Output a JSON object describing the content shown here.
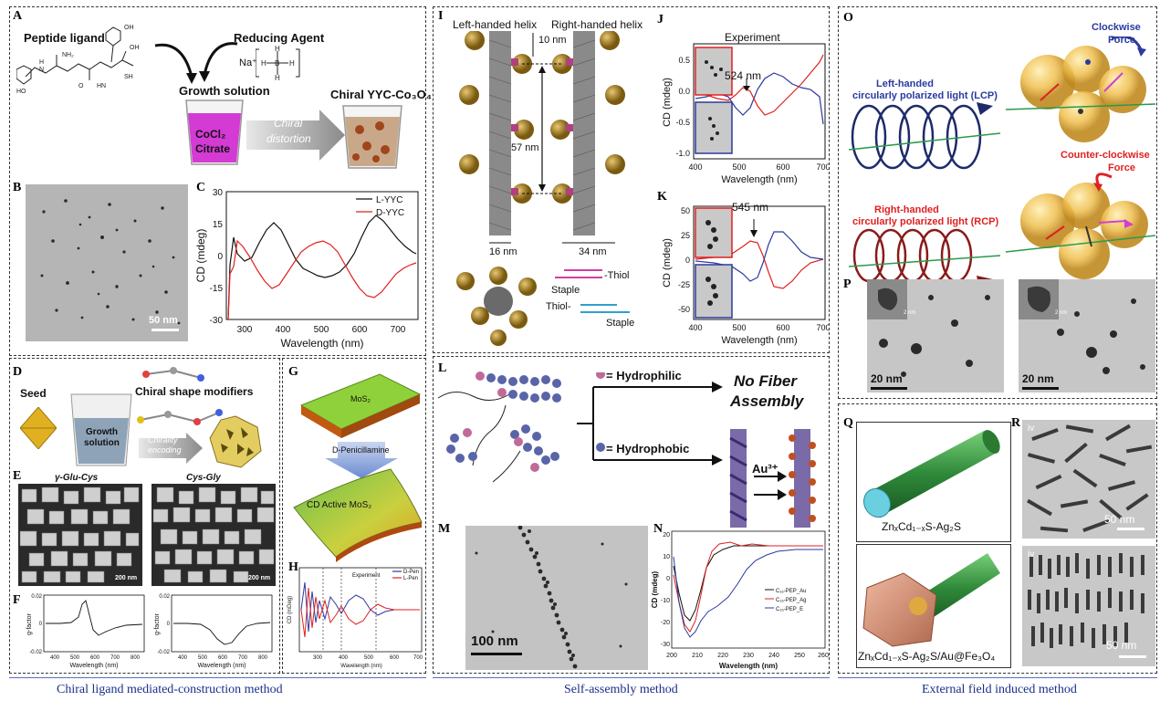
{
  "labels": {
    "A": "A",
    "B": "B",
    "C": "C",
    "D": "D",
    "E": "E",
    "F": "F",
    "G": "G",
    "H": "H",
    "I": "I",
    "J": "J",
    "K": "K",
    "L": "L",
    "M": "M",
    "N": "N",
    "O": "O",
    "P": "P",
    "Q": "Q",
    "R": "R"
  },
  "panelA": {
    "peptide": "Peptide ligand",
    "reducing": "Reducing Agent",
    "na": "Na⁺",
    "growth": "Growth solution",
    "cocl2": "CoCl₂",
    "citrate": "Citrate",
    "chiral": "Chiral",
    "distortion": "distortion",
    "product": "Chiral YYC-Co₃O₄"
  },
  "panelB": {
    "scale": "50 nm"
  },
  "panelC": {
    "ylabel": "CD (mdeg)",
    "xlabel": "Wavelength (nm)",
    "legend1": "L-YYC",
    "legend2": "D-YYC",
    "yticks": [
      "30",
      "15",
      "0",
      "-15",
      "-30"
    ],
    "xticks": [
      "300",
      "400",
      "500",
      "600",
      "700"
    ]
  },
  "panelD": {
    "seed": "Seed",
    "modifiers": "Chiral shape modifiers",
    "growth1": "Growth",
    "growth2": "solution",
    "chirality1": "Chirality",
    "chirality2": "encoding"
  },
  "panelE": {
    "left": "γ-Glu-Cys",
    "right": "Cys-Gly",
    "scale": "200 nm"
  },
  "panelF": {
    "ylabel": "g-factor",
    "xlabel": "Wavelength (nm)",
    "yticks": [
      "0.02",
      "0",
      "-0.02"
    ],
    "xticks": [
      "400",
      "500",
      "600",
      "700",
      "800"
    ]
  },
  "panelG": {
    "top": "MoS₂",
    "arrow": "D-Penicillamine",
    "bottom": "CD Active MoS₂"
  },
  "panelH": {
    "legend1": "D-Pen",
    "legend2": "L-Pen",
    "exp": "Experiment",
    "ylabel": "CD (mDeg)",
    "xlabel": "Wavelength (nm)",
    "xticks": [
      "300",
      "400",
      "500",
      "600",
      "700"
    ]
  },
  "panelI": {
    "left": "Left-handed helix",
    "right": "Right-handed helix",
    "d10": "10 nm",
    "d57": "57 nm",
    "d16": "16 nm",
    "d34": "34 nm",
    "thiol1": "-Thiol",
    "staple1": "Staple",
    "thiol2": "Thiol-",
    "staple2": "Staple"
  },
  "panelJ": {
    "title": "Experiment",
    "peak": "524 nm",
    "ylabel": "CD (mdeg)",
    "xlabel": "Wavelength (nm)",
    "yticks": [
      "0.5",
      "0.0",
      "-0.5",
      "-1.0"
    ],
    "xticks": [
      "400",
      "500",
      "600",
      "700"
    ]
  },
  "panelK": {
    "peak": "545 nm",
    "ylabel": "CD (mdeg)",
    "xlabel": "Wavelength (nm)",
    "yticks": [
      "50",
      "25",
      "0",
      "-25",
      "-50"
    ],
    "xticks": [
      "400",
      "500",
      "600",
      "700"
    ]
  },
  "panelL": {
    "hydrophilic": "= Hydrophilic",
    "hydrophobic": "= Hydrophobic",
    "nofiber1": "No Fiber",
    "nofiber2": "Assembly",
    "au": "Au³⁺"
  },
  "panelM": {
    "scale": "100 nm"
  },
  "panelN": {
    "ylabel": "CD (mdeg)",
    "xlabel": "Wavelength (nm)",
    "yticks": [
      "20",
      "10",
      "0",
      "-10",
      "-20",
      "-30"
    ],
    "xticks": [
      "200",
      "210",
      "220",
      "230",
      "240",
      "250",
      "260"
    ],
    "legend": [
      "C₁₆-PEP_Au",
      "C₁₆-PEP_Ag",
      "C₁₆-PEP_E"
    ]
  },
  "panelO": {
    "lcp1": "Left-handed",
    "lcp2": "circularly polarized light (LCP)",
    "rcp1": "Right-handed",
    "rcp2": "circularly polarized light (RCP)",
    "cw1": "Clockwise",
    "cw2": "Force",
    "ccw1": "Counter-clockwise",
    "ccw2": "Force"
  },
  "panelP": {
    "scale": "20 nm",
    "inset": "2 nm"
  },
  "panelQ": {
    "top": "ZnₓCd₁₋ₓS-Ag₂S",
    "bottom": "ZnₓCd₁₋ₓS-Ag₂S/Au@Fe₃O₄"
  },
  "panelR": {
    "roman": "iv",
    "scale": "50 nm"
  },
  "footer": {
    "left": "Chiral ligand mediated-construction method",
    "middle": "Self-assembly method",
    "right": "External field induced method"
  },
  "colors": {
    "red": "#e02020",
    "blue": "#2a3aa0",
    "black": "#111111",
    "footer": "#1a2f8a",
    "gold": "#b08a2a",
    "green": "#2f8a3a"
  }
}
